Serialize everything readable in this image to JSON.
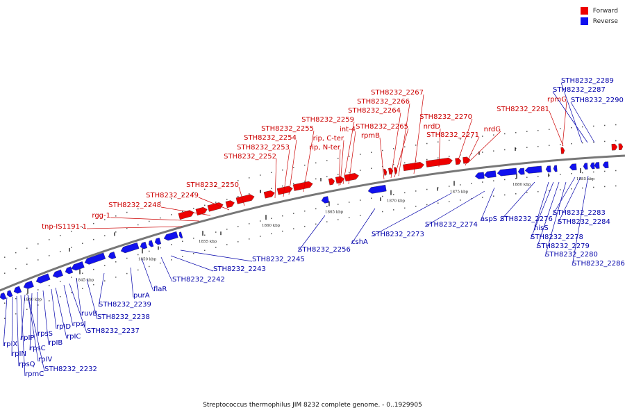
{
  "legend": [
    {
      "label": "Forward",
      "color": "#ee0000"
    },
    {
      "label": "Reverse",
      "color": "#1111ee"
    }
  ],
  "caption": "Streptococcus thermophilus JIM 8232 complete genome. - 0..1929905",
  "colors": {
    "forward": "#ee0000",
    "reverse": "#1111ee",
    "label_forward": "#cc0000",
    "label_reverse": "#0000aa"
  },
  "scale_ticks": [
    "1840 kbp",
    "1845 kbp",
    "1850 kbp",
    "1855 kbp",
    "1860 kbp",
    "1865 kbp",
    "1870 kbp",
    "1875 kbp",
    "1880 kbp",
    "1885 kbp"
  ],
  "forward_labels": [
    "tnp-IS1191-1",
    "rgg-1",
    "STH8232_2248",
    "STH8232_2249",
    "STH8232_2250",
    "STH8232_2252",
    "STH8232_2253",
    "STH8232_2254",
    "STH8232_2255",
    "rip, N-ter",
    "rip, C-ter",
    "STH8232_2259",
    "int-4",
    "rpmB",
    "STH8232_2265",
    "STH8232_2264",
    "STH8232_2266",
    "STH8232_2267",
    "nrdD",
    "STH8232_2270",
    "STH8232_2271",
    "nrdG",
    "STH8232_2281",
    "rpmG"
  ],
  "reverse_labels": [
    "STH8232_2289",
    "STH8232_2287",
    "STH8232_2290",
    "STH8232_2283",
    "STH8232_2284",
    "STH8232_2276",
    "hisS",
    "STH8232_2278",
    "STH8232_2279",
    "STH8232_2280",
    "STH8232_2286",
    "aspS",
    "STH8232_2274",
    "STH8232_2273",
    "cshA",
    "STH8232_2256",
    "STH8232_2245",
    "STH8232_2243",
    "STH8232_2242",
    "flaR",
    "purA",
    "STH8232_2239",
    "ruvB",
    "STH8232_2238",
    "STH8232_2237",
    "rpsJ",
    "rpIC",
    "rpID",
    "rpIB",
    "rpsS",
    "rpsC",
    "rpIP",
    "rpIV",
    "rpIX",
    "rpIN",
    "rpsQ",
    "rpmC",
    "STH8232_2232"
  ]
}
